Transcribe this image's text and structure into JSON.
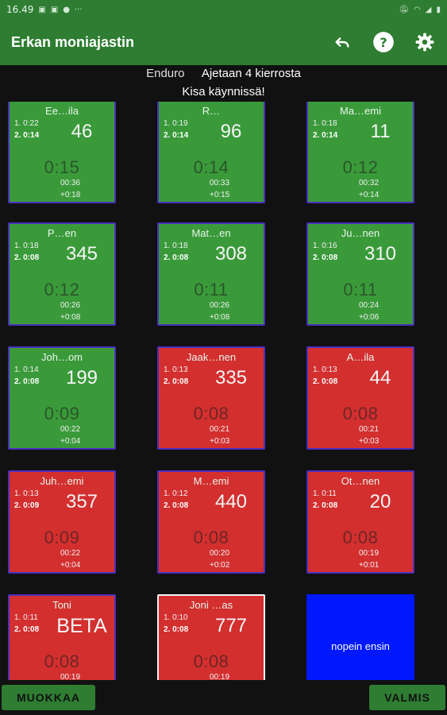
{
  "status_bar": {
    "time": "16.49",
    "icons": [
      "image-icon",
      "image-icon",
      "f-icon",
      "dots-icon"
    ],
    "right_icons": [
      "mute-icon",
      "wifi-icon",
      "signal-icon",
      "battery-icon"
    ]
  },
  "app": {
    "title": "Erkan moniajastin",
    "actions": [
      "undo-icon",
      "help-icon",
      "settings-icon"
    ]
  },
  "race": {
    "sport": "Enduro",
    "laps_text": "Ajetaan 4 kierrosta",
    "status": "Kisa käynnissä!"
  },
  "colors": {
    "appbar": "#2e7d32",
    "green_card": "#3a9a3a",
    "red_card": "#d32f2f",
    "blue_card": "#0018ff"
  },
  "cards": [
    {
      "name": "Ee…ila",
      "lap1": "1. 0:22",
      "lap2": "2. 0:14",
      "number": "46",
      "time": "0:15",
      "elapsed": "00:36",
      "diff": "+0:18",
      "color": "green"
    },
    {
      "name": "R…",
      "lap1": "1. 0:19",
      "lap2": "2. 0:14",
      "number": "96",
      "time": "0:14",
      "elapsed": "00:33",
      "diff": "+0:15",
      "color": "green"
    },
    {
      "name": "Ma…emi",
      "lap1": "1. 0:18",
      "lap2": "2. 0:14",
      "number": "11",
      "time": "0:12",
      "elapsed": "00:32",
      "diff": "+0:14",
      "color": "green"
    },
    {
      "name": "P…en",
      "lap1": "1. 0:18",
      "lap2": "2. 0:08",
      "number": "345",
      "time": "0:12",
      "elapsed": "00:26",
      "diff": "+0:08",
      "color": "green"
    },
    {
      "name": "Mat…en",
      "lap1": "1. 0:18",
      "lap2": "2. 0:08",
      "number": "308",
      "time": "0:11",
      "elapsed": "00:26",
      "diff": "+0:08",
      "color": "green"
    },
    {
      "name": "Ju…nen",
      "lap1": "1. 0:16",
      "lap2": "2. 0:08",
      "number": "310",
      "time": "0:11",
      "elapsed": "00:24",
      "diff": "+0:06",
      "color": "green"
    },
    {
      "name": "Joh…om",
      "lap1": "1. 0:14",
      "lap2": "2. 0:08",
      "number": "199",
      "time": "0:09",
      "elapsed": "00:22",
      "diff": "+0:04",
      "color": "green"
    },
    {
      "name": "Jaak…nen",
      "lap1": "1. 0:13",
      "lap2": "2. 0:08",
      "number": "335",
      "time": "0:08",
      "elapsed": "00:21",
      "diff": "+0:03",
      "color": "red"
    },
    {
      "name": "A…ila",
      "lap1": "1. 0:13",
      "lap2": "2. 0:08",
      "number": "44",
      "time": "0:08",
      "elapsed": "00:21",
      "diff": "+0:03",
      "color": "red"
    },
    {
      "name": "Juh…emi",
      "lap1": "1. 0:13",
      "lap2": "2. 0:09",
      "number": "357",
      "time": "0:09",
      "elapsed": "00:22",
      "diff": "+0:04",
      "color": "red"
    },
    {
      "name": "M…emi",
      "lap1": "1. 0:12",
      "lap2": "2. 0:08",
      "number": "440",
      "time": "0:08",
      "elapsed": "00:20",
      "diff": "+0:02",
      "color": "red"
    },
    {
      "name": "Ot…nen",
      "lap1": "1. 0:11",
      "lap2": "2. 0:08",
      "number": "20",
      "time": "0:08",
      "elapsed": "00:19",
      "diff": "+0:01",
      "color": "red"
    },
    {
      "name": "Toni",
      "lap1": "1. 0:11",
      "lap2": "2. 0:08",
      "number": "BETA",
      "time": "0:08",
      "elapsed": "00:19",
      "diff": "",
      "color": "red"
    },
    {
      "name": "Joni …as",
      "lap1": "1. 0:10",
      "lap2": "2. 0:08",
      "number": "777",
      "time": "0:08",
      "elapsed": "00:19",
      "diff": "",
      "color": "red",
      "selected": true
    }
  ],
  "sort_button": {
    "label": "nopein ensin"
  },
  "bottom": {
    "edit_label": "MUOKKAA",
    "done_label": "VALMIS"
  }
}
